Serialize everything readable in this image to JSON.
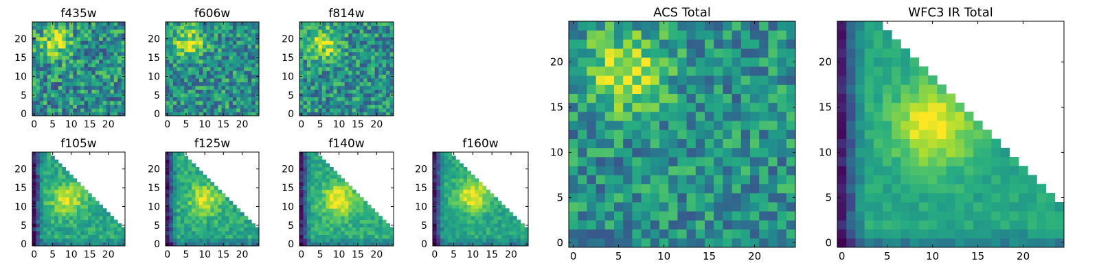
{
  "colormap": "viridis",
  "chart_data": [
    {
      "type": "heatmap",
      "title": "f435w",
      "size": 25,
      "ylim": [
        -0.5,
        24.5
      ],
      "xticks": [
        "0",
        "5",
        "10",
        "15",
        "20"
      ],
      "yticks": [
        "0",
        "5",
        "10",
        "15",
        "20"
      ],
      "blob_center": [
        6,
        19
      ],
      "blob_strength": 0.35,
      "noise": 0.55,
      "seed": 11,
      "base": 0.5,
      "masked_triangle": false
    },
    {
      "type": "heatmap",
      "title": "f606w",
      "size": 25,
      "ylim": [
        -0.5,
        24.5
      ],
      "xticks": [
        "0",
        "5",
        "10",
        "15",
        "20"
      ],
      "yticks": [
        "0",
        "5",
        "10",
        "15",
        "20"
      ],
      "blob_center": [
        6,
        19
      ],
      "blob_strength": 0.4,
      "noise": 0.5,
      "seed": 23,
      "base": 0.5,
      "masked_triangle": false
    },
    {
      "type": "heatmap",
      "title": "f814w",
      "size": 25,
      "ylim": [
        -0.5,
        24.5
      ],
      "xticks": [
        "0",
        "5",
        "10",
        "15",
        "20"
      ],
      "yticks": [
        "0",
        "5",
        "10",
        "15",
        "20"
      ],
      "blob_center": [
        6,
        19
      ],
      "blob_strength": 0.45,
      "noise": 0.5,
      "seed": 37,
      "base": 0.5,
      "masked_triangle": false
    },
    {
      "type": "heatmap",
      "title": "f105w",
      "size": 25,
      "ylim": [
        -0.5,
        24.5
      ],
      "xticks": [
        "0",
        "5",
        "10",
        "15",
        "20"
      ],
      "yticks": [
        "0",
        "5",
        "10",
        "15",
        "20"
      ],
      "blob_center": [
        9,
        12
      ],
      "blob_strength": 0.35,
      "noise": 0.25,
      "seed": 41,
      "base": 0.6,
      "masked_triangle": true
    },
    {
      "type": "heatmap",
      "title": "f125w",
      "size": 25,
      "ylim": [
        -0.5,
        24.5
      ],
      "xticks": [
        "0",
        "5",
        "10",
        "15",
        "20"
      ],
      "yticks": [
        "0",
        "5",
        "10",
        "15",
        "20"
      ],
      "blob_center": [
        10,
        12
      ],
      "blob_strength": 0.35,
      "noise": 0.25,
      "seed": 53,
      "base": 0.6,
      "masked_triangle": true
    },
    {
      "type": "heatmap",
      "title": "f140w",
      "size": 25,
      "ylim": [
        -0.5,
        24.5
      ],
      "xticks": [
        "0",
        "5",
        "10",
        "15",
        "20"
      ],
      "yticks": [
        "0",
        "5",
        "10",
        "15",
        "20"
      ],
      "blob_center": [
        10,
        12
      ],
      "blob_strength": 0.4,
      "noise": 0.22,
      "seed": 67,
      "base": 0.62,
      "masked_triangle": true
    },
    {
      "type": "heatmap",
      "title": "f160w",
      "size": 25,
      "ylim": [
        -0.5,
        24.5
      ],
      "xticks": [
        "0",
        "5",
        "10",
        "15",
        "20"
      ],
      "yticks": [
        "0",
        "5",
        "10",
        "15",
        "20"
      ],
      "blob_center": [
        10,
        13
      ],
      "blob_strength": 0.4,
      "noise": 0.2,
      "seed": 79,
      "base": 0.6,
      "masked_triangle": true
    },
    {
      "type": "heatmap",
      "title": "ACS Total",
      "size": 25,
      "ylim": [
        -0.5,
        24.5
      ],
      "xticks": [
        "0",
        "5",
        "10",
        "15",
        "20"
      ],
      "yticks": [
        "0",
        "5",
        "10",
        "15",
        "20"
      ],
      "blob_center": [
        6,
        19
      ],
      "blob_strength": 0.45,
      "noise": 0.45,
      "seed": 97,
      "base": 0.5,
      "masked_triangle": false
    },
    {
      "type": "heatmap",
      "title": "WFC3 IR Total",
      "size": 25,
      "ylim": [
        -0.5,
        24.5
      ],
      "xticks": [
        "0",
        "5",
        "10",
        "15",
        "20"
      ],
      "yticks": [
        "0",
        "5",
        "10",
        "15",
        "20"
      ],
      "blob_center": [
        10,
        13
      ],
      "blob_strength": 0.42,
      "noise": 0.15,
      "seed": 103,
      "base": 0.6,
      "masked_triangle": true
    }
  ]
}
